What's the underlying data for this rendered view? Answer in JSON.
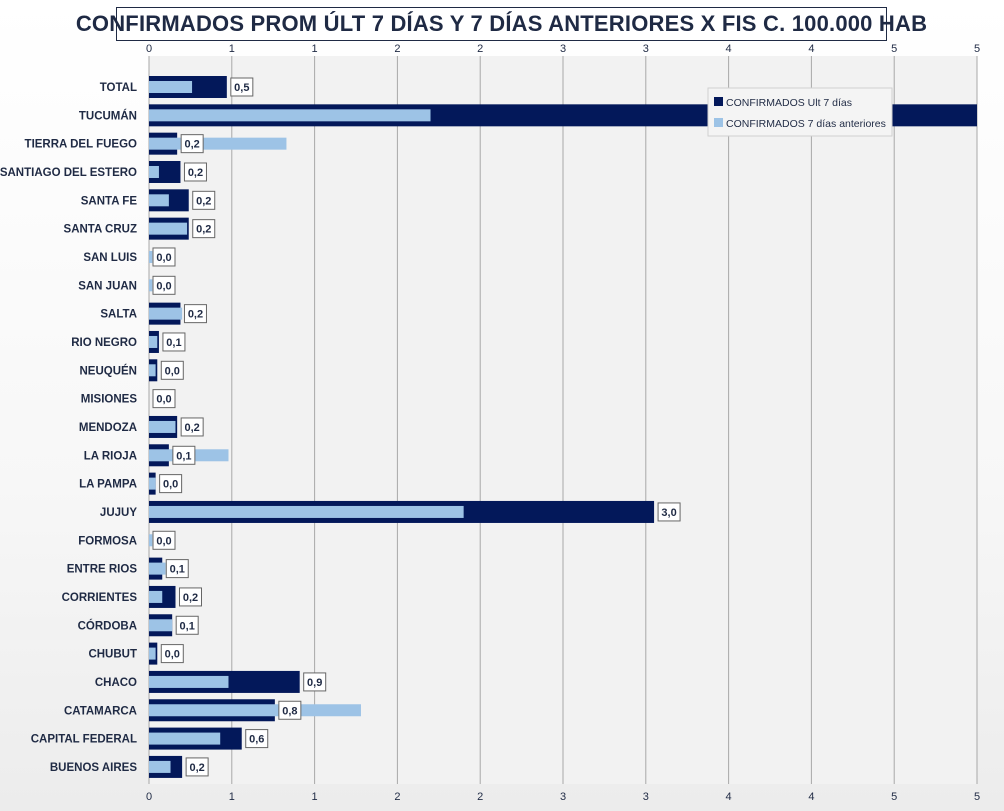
{
  "colors": {
    "ult": "#03185A",
    "ant": "#9DC3E6",
    "grid": "#a8a8a8",
    "text": "#1f2a44",
    "label_border": "#666666"
  },
  "chart_data": {
    "type": "bar",
    "orientation": "horizontal",
    "title": "CONFIRMADOS PROM ÚLT 7 DÍAS Y 7 DÍAS ANTERIORES X FIS C. 100.000 HAB",
    "xlim": [
      0,
      5
    ],
    "x_tick_labels": [
      "0",
      "1",
      "1",
      "2",
      "2",
      "3",
      "3",
      "4",
      "4",
      "5",
      "5"
    ],
    "legend_position": "top-right",
    "grid": true,
    "categories": [
      "TOTAL",
      "TUCUMÁN",
      "TIERRA  DEL FUEGO",
      "SANTIAGO  DEL ESTERO",
      "SANTA  FE",
      "SANTA  CRUZ",
      "SAN LUIS",
      "SAN JUAN",
      "SALTA",
      "RIO  NEGRO",
      "NEUQUÉN",
      "MISIONES",
      "MENDOZA",
      "LA RIOJA",
      "LA PAMPA",
      "JUJUY",
      "FORMOSA",
      "ENTRE  RIOS",
      "CORRIENTES",
      "CÓRDOBA",
      "CHUBUT",
      "CHACO",
      "CATAMARCA",
      "CAPITAL FEDERAL",
      "BUENOS  AIRES"
    ],
    "series": [
      {
        "name": "CONFIRMADOS Ult 7 días",
        "values": [
          0.47,
          5.2,
          0.17,
          0.19,
          0.24,
          0.24,
          0.0,
          0.0,
          0.19,
          0.06,
          0.05,
          0.0,
          0.17,
          0.12,
          0.04,
          3.05,
          0.0,
          0.08,
          0.16,
          0.14,
          0.05,
          0.91,
          0.76,
          0.56,
          0.2
        ],
        "labels": [
          "0,5",
          "",
          "0,2",
          "0,2",
          "0,2",
          "0,2",
          "0,0",
          "0,0",
          "0,2",
          "0,1",
          "0,0",
          "0,0",
          "0,2",
          "0,1",
          "0,0",
          "3,0",
          "0,0",
          "0,1",
          "0,2",
          "0,1",
          "0,0",
          "0,9",
          "0,8",
          "0,6",
          "0,2"
        ]
      },
      {
        "name": "CONFIRMADOS 7 días anteriores",
        "values": [
          0.26,
          1.7,
          0.83,
          0.06,
          0.12,
          0.23,
          0.02,
          0.02,
          0.2,
          0.05,
          0.04,
          0.0,
          0.16,
          0.48,
          0.04,
          1.9,
          0.02,
          0.1,
          0.08,
          0.14,
          0.04,
          0.48,
          1.28,
          0.43,
          0.13
        ]
      }
    ]
  }
}
